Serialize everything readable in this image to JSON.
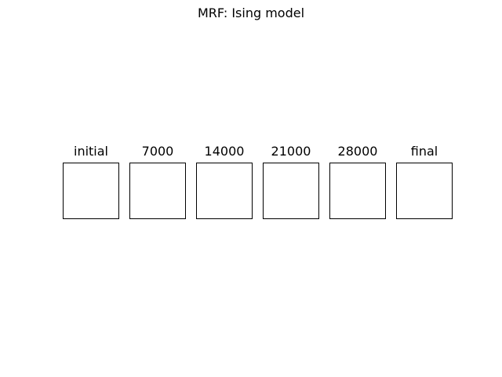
{
  "figure": {
    "suptitle": "MRF: Ising model",
    "panels": [
      {
        "title": "initial"
      },
      {
        "title": "7000"
      },
      {
        "title": "14000"
      },
      {
        "title": "21000"
      },
      {
        "title": "28000"
      },
      {
        "title": "final"
      }
    ]
  }
}
